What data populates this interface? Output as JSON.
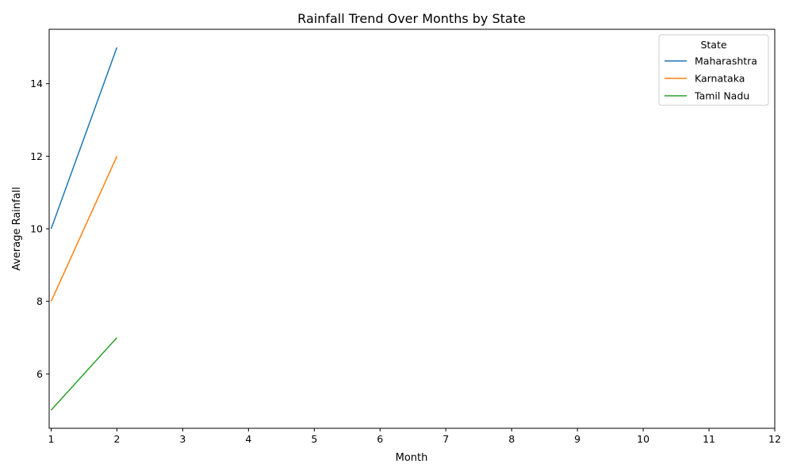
{
  "chart_data": {
    "type": "line",
    "title": "Rainfall Trend Over Months by State",
    "xlabel": "Month",
    "ylabel": "Average Rainfall",
    "x_ticks": [
      1,
      2,
      3,
      4,
      5,
      6,
      7,
      8,
      9,
      10,
      11,
      12
    ],
    "y_ticks": [
      6,
      8,
      10,
      12,
      14
    ],
    "xlim": [
      0.97,
      12
    ],
    "ylim": [
      4.5,
      15.5
    ],
    "grid": false,
    "legend": {
      "title": "State",
      "placement": "top-right"
    },
    "series": [
      {
        "name": "Maharashtra",
        "color": "#1f77b4",
        "x": [
          1,
          2
        ],
        "y": [
          10,
          15
        ]
      },
      {
        "name": "Karnataka",
        "color": "#ff7f0e",
        "x": [
          1,
          2
        ],
        "y": [
          8,
          12
        ]
      },
      {
        "name": "Tamil Nadu",
        "color": "#2ca02c",
        "x": [
          1,
          2
        ],
        "y": [
          5,
          7
        ]
      }
    ]
  }
}
